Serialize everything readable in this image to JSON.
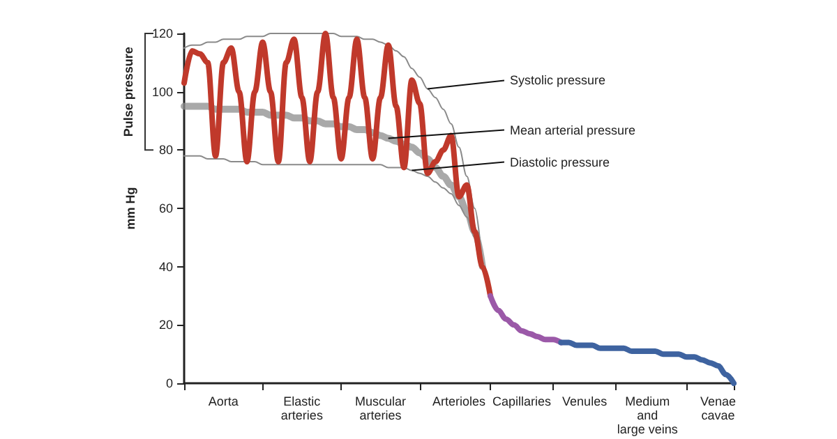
{
  "chart_data": {
    "type": "line",
    "ylabel": "mm Hg",
    "ylim": [
      0,
      120
    ],
    "yticks": [
      0,
      20,
      40,
      60,
      80,
      100,
      120
    ],
    "categories": [
      null,
      null,
      null,
      null,
      null,
      "Aorta",
      null,
      null,
      null,
      null,
      null,
      null,
      null,
      null,
      null,
      "Elastic\narteries",
      null,
      null,
      null,
      null,
      null,
      null,
      null,
      null,
      null,
      "Muscular\narteries",
      null,
      null,
      null,
      null,
      null,
      null,
      null,
      null,
      null,
      "Arterioles",
      null,
      null,
      null,
      null,
      null,
      null,
      null,
      "Capillaries",
      null,
      null,
      null,
      null,
      null,
      null,
      null,
      "Venules",
      null,
      null,
      null,
      null,
      null,
      null,
      null,
      "Medium\nand\nlarge veins",
      null,
      null,
      null,
      null,
      null,
      null,
      null,
      null,
      "Venae\ncavae",
      null,
      null
    ],
    "marker": "none",
    "line_style": "solid",
    "series": [
      {
        "name": "Systolic pressure",
        "color": "#8a8a8a",
        "values": [
          115,
          116,
          116,
          117,
          117,
          118,
          118,
          118,
          119,
          119,
          119,
          120,
          120,
          120,
          120,
          120,
          120,
          120,
          120,
          120,
          119,
          119,
          119,
          118,
          118,
          117,
          116,
          114,
          112,
          108,
          105,
          101,
          98,
          94,
          89,
          81,
          71,
          60,
          40,
          null,
          null,
          null,
          null,
          null,
          null,
          null,
          null,
          null,
          null,
          null,
          null,
          null,
          null,
          null,
          null,
          null,
          null,
          null,
          null,
          null,
          null,
          null,
          null,
          null,
          null,
          null,
          null,
          null,
          null,
          null,
          null
        ]
      },
      {
        "name": "Diastolic pressure",
        "color": "#8a8a8a",
        "values": [
          78,
          78,
          78,
          77,
          77,
          77,
          76,
          76,
          76,
          76,
          75,
          75,
          75,
          75,
          75,
          75,
          75,
          75,
          75,
          75,
          75,
          75,
          75,
          75,
          75,
          75,
          74,
          74,
          74,
          73,
          72,
          71,
          69,
          67,
          65,
          61,
          57,
          50,
          40,
          null,
          null,
          null,
          null,
          null,
          null,
          null,
          null,
          null,
          null,
          null,
          null,
          null,
          null,
          null,
          null,
          null,
          null,
          null,
          null,
          null,
          null,
          null,
          null,
          null,
          null,
          null,
          null,
          null,
          null,
          null,
          null
        ]
      },
      {
        "name": "Mean arterial pressure",
        "color": "#8c8c8c",
        "values": [
          95,
          95,
          95,
          95,
          94,
          94,
          94,
          94,
          93,
          93,
          93,
          92,
          92,
          92,
          91,
          91,
          90,
          90,
          89,
          89,
          88,
          88,
          87,
          87,
          86,
          85,
          84,
          83,
          82,
          81,
          79,
          77,
          74,
          71,
          68,
          64,
          59,
          52,
          40,
          null,
          null,
          null,
          null,
          null,
          null,
          null,
          null,
          null,
          null,
          null,
          null,
          null,
          null,
          null,
          null,
          null,
          null,
          null,
          null,
          null,
          null,
          null,
          null,
          null,
          null,
          null,
          null,
          null,
          null,
          null,
          null
        ]
      },
      {
        "color": "#c0392b",
        "values": [
          103,
          114,
          113,
          110,
          78,
          110,
          115,
          100,
          76,
          100,
          117,
          100,
          76,
          110,
          118,
          98,
          76,
          100,
          120,
          98,
          77,
          98,
          118,
          98,
          77,
          98,
          116,
          95,
          74,
          104,
          96,
          72,
          76,
          80,
          85,
          64,
          68,
          52,
          40,
          30,
          null,
          null,
          null,
          null,
          null,
          null,
          null,
          null,
          null,
          null,
          null,
          null,
          null,
          null,
          null,
          null,
          null,
          null,
          null,
          null,
          null,
          null,
          null,
          null,
          null,
          null,
          null,
          null,
          null,
          null,
          null
        ]
      },
      {
        "color": "#9b59a8",
        "values": [
          null,
          null,
          null,
          null,
          null,
          null,
          null,
          null,
          null,
          null,
          null,
          null,
          null,
          null,
          null,
          null,
          null,
          null,
          null,
          null,
          null,
          null,
          null,
          null,
          null,
          null,
          null,
          null,
          null,
          null,
          null,
          null,
          null,
          null,
          null,
          null,
          null,
          null,
          null,
          30,
          25,
          22,
          20,
          18,
          17,
          16,
          15,
          15,
          14,
          null,
          null,
          null,
          null,
          null,
          null,
          null,
          null,
          null,
          null,
          null,
          null,
          null,
          null,
          null,
          null,
          null,
          null,
          null,
          null,
          null,
          null
        ]
      },
      {
        "color": "#3e63a0",
        "values": [
          null,
          null,
          null,
          null,
          null,
          null,
          null,
          null,
          null,
          null,
          null,
          null,
          null,
          null,
          null,
          null,
          null,
          null,
          null,
          null,
          null,
          null,
          null,
          null,
          null,
          null,
          null,
          null,
          null,
          null,
          null,
          null,
          null,
          null,
          null,
          null,
          null,
          null,
          null,
          null,
          null,
          null,
          null,
          null,
          null,
          null,
          null,
          null,
          14,
          14,
          13,
          13,
          13,
          12,
          12,
          12,
          12,
          11,
          11,
          11,
          11,
          10,
          10,
          10,
          9,
          9,
          8,
          7,
          6,
          3,
          0
        ]
      }
    ],
    "annotations": [
      "Pulse pressure"
    ]
  }
}
